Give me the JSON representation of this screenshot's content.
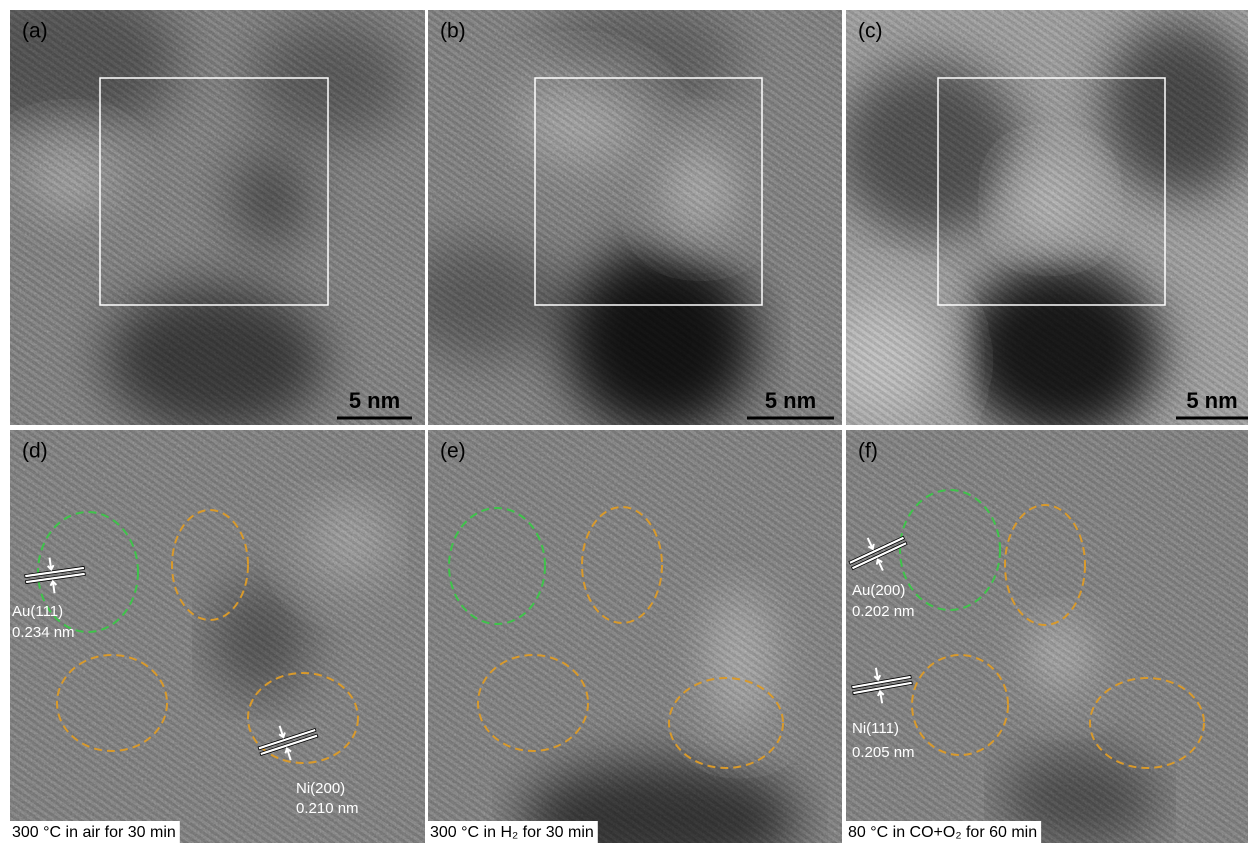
{
  "panels": [
    {
      "label": "(a)",
      "scale_bar": "5 nm"
    },
    {
      "label": "(b)",
      "scale_bar": "5 nm"
    },
    {
      "label": "(c)",
      "scale_bar": "5 nm"
    },
    {
      "label": "(d)",
      "annotations": [
        {
          "plane": "Au(111)",
          "spacing": "0.234 nm"
        },
        {
          "plane": "Ni(200)",
          "spacing": "0.210 nm"
        }
      ],
      "caption": "300 °C in air for 30 min"
    },
    {
      "label": "(e)",
      "caption": "300 °C in H₂ for 30 min"
    },
    {
      "label": "(f)",
      "annotations": [
        {
          "plane": "Au(200)",
          "spacing": "0.202 nm"
        },
        {
          "plane": "Ni(111)",
          "spacing": "0.205 nm"
        }
      ],
      "caption": "80 °C in CO+O₂ for 60 min"
    }
  ]
}
